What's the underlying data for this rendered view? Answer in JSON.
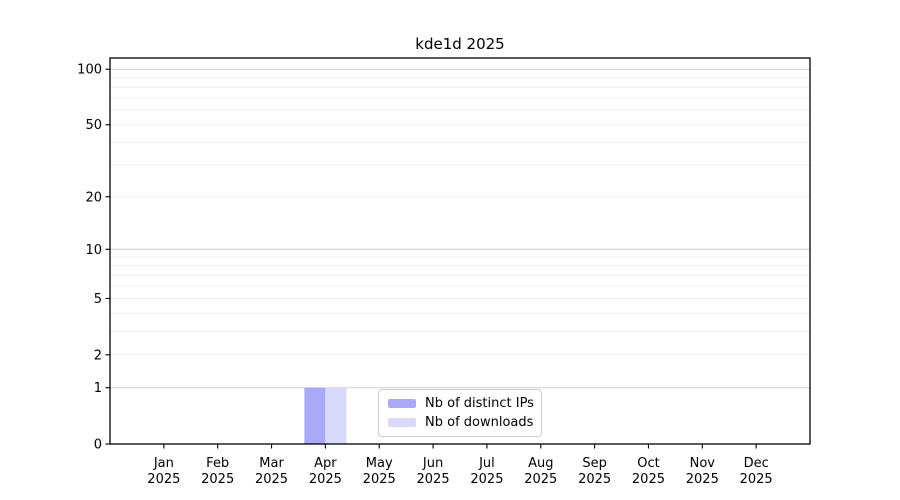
{
  "chart_data": {
    "type": "bar",
    "title": "kde1d 2025",
    "categories": [
      "Jan",
      "Feb",
      "Mar",
      "Apr",
      "May",
      "Jun",
      "Jul",
      "Aug",
      "Sep",
      "Oct",
      "Nov",
      "Dec"
    ],
    "x_tick_year": "2025",
    "series": [
      {
        "name": "Nb of distinct IPs",
        "color": "#a9a9f7",
        "values": [
          0,
          0,
          0,
          1,
          0,
          0,
          0,
          0,
          0,
          0,
          0,
          0
        ]
      },
      {
        "name": "Nb of downloads",
        "color": "#d9d9fa",
        "values": [
          0,
          0,
          0,
          1,
          0,
          0,
          0,
          0,
          0,
          0,
          0,
          0
        ]
      }
    ],
    "y_axis": {
      "scale": "log1p",
      "ticks": [
        0,
        1,
        2,
        5,
        10,
        20,
        50,
        100
      ],
      "ylim": [
        0,
        115
      ],
      "grid_minor": [
        2,
        3,
        4,
        5,
        6,
        7,
        8,
        9,
        20,
        30,
        40,
        50,
        60,
        70,
        80,
        90
      ],
      "grid_major": [
        1,
        10,
        100
      ]
    },
    "legend": {
      "position": "lower-center"
    },
    "colors": {
      "grid_minor": "#efefef",
      "grid_major": "#cfcfcf",
      "axis": "#000000",
      "text": "#000000",
      "background": "#ffffff"
    },
    "grid": "horizontal-only"
  }
}
